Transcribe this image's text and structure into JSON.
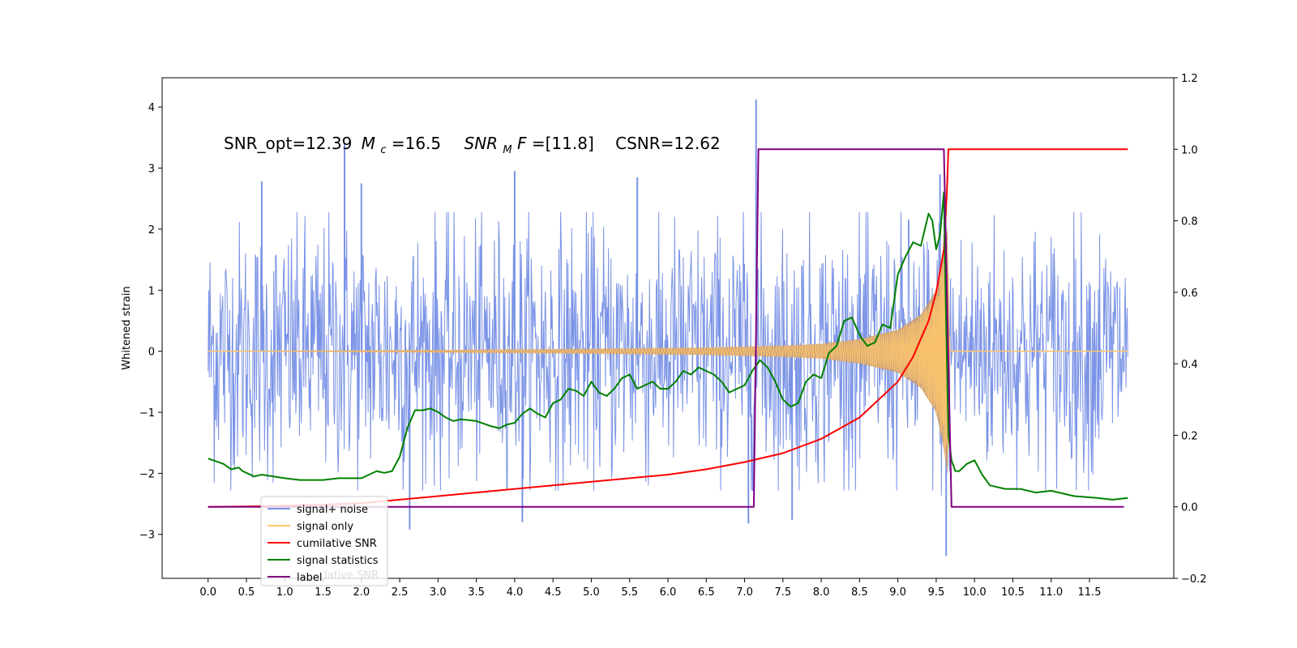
{
  "chart_data": {
    "type": "line",
    "annotation": {
      "snr_opt": "SNR_opt=12.39",
      "mc_symbol": "M",
      "mc_sub": "c",
      "mc_value": "=16.5",
      "snrmf_symbol": "SNR",
      "snrmf_sub": "M",
      "snrmf_tail": "F",
      "snrmf_value": "=[11.8]",
      "csnr": "CSNR=12.62"
    },
    "ylabel_left": "Whitened strain",
    "xlim": [
      -0.6,
      12.6
    ],
    "ylim_left": [
      -3.72,
      4.48
    ],
    "ylim_right": [
      -0.2,
      1.2
    ],
    "xticks": [
      "0.0",
      "0.5",
      "1.0",
      "1.5",
      "2.0",
      "2.5",
      "3.0",
      "3.5",
      "4.0",
      "4.5",
      "5.0",
      "5.5",
      "6.0",
      "6.5",
      "7.0",
      "7.5",
      "8.0",
      "8.5",
      "9.0",
      "9.5",
      "10.0",
      "10.5",
      "11.0",
      "11.5"
    ],
    "yticks_left": [
      "−3",
      "−2",
      "−1",
      "0",
      "1",
      "2",
      "3",
      "4"
    ],
    "yticks_right": [
      "−0.2",
      "0.0",
      "0.2",
      "0.4",
      "0.6",
      "0.8",
      "1.0",
      "1.2"
    ],
    "legend_position": "lower left",
    "legend": [
      {
        "label": "signal+ noise",
        "color": "#7a93e6"
      },
      {
        "label": "signal only",
        "color": "#ffc56a"
      },
      {
        "label": "cumilative SNR",
        "color": "#ff0000"
      },
      {
        "label": "signal statistics",
        "color": "#008000"
      },
      {
        "label": "label",
        "color": "#800080"
      }
    ],
    "legend_ghost_text": "lative SNR",
    "series": [
      {
        "name": "signal+ noise",
        "axis": "left",
        "color": "#7a93e6",
        "x_range": [
          0.0,
          12.0
        ],
        "band_envelope": {
          "x": [
            0,
            7.0,
            8.0,
            9.0,
            9.5,
            9.62,
            9.7,
            12.0
          ],
          "lo": [
            -1.9,
            -1.9,
            -1.9,
            -1.9,
            -2.0,
            -2.1,
            -1.9,
            -1.9
          ],
          "hi": [
            1.9,
            1.9,
            1.9,
            1.9,
            2.0,
            2.1,
            1.9,
            1.9
          ]
        },
        "notable_extremes": [
          {
            "x": 7.15,
            "y": 4.12
          },
          {
            "x": 1.78,
            "y": 3.4
          },
          {
            "x": 9.63,
            "y": -3.35
          },
          {
            "x": 2.63,
            "y": -2.92
          },
          {
            "x": 4.1,
            "y": -2.8
          },
          {
            "x": 7.05,
            "y": -2.82
          },
          {
            "x": 7.62,
            "y": -2.76
          },
          {
            "x": 0.7,
            "y": 2.78
          },
          {
            "x": 2.0,
            "y": 2.75
          },
          {
            "x": 4.0,
            "y": 2.95
          },
          {
            "x": 5.6,
            "y": 2.85
          },
          {
            "x": 9.55,
            "y": 2.9
          }
        ]
      },
      {
        "name": "signal only",
        "axis": "left",
        "color": "#ffc56a",
        "fill_color": "#c79a6e",
        "envelope": {
          "x": [
            0,
            3.0,
            5.0,
            6.5,
            7.5,
            8.0,
            8.5,
            9.0,
            9.3,
            9.5,
            9.6,
            9.65,
            9.68,
            12.0
          ],
          "amp": [
            0.0,
            0.02,
            0.04,
            0.06,
            0.09,
            0.12,
            0.2,
            0.35,
            0.6,
            1.0,
            1.6,
            2.05,
            0.0,
            0.0
          ]
        }
      },
      {
        "name": "cumilative SNR",
        "axis": "right",
        "color": "#ff0000",
        "x": [
          0,
          0.5,
          1.0,
          1.5,
          2.0,
          3.0,
          4.0,
          5.0,
          6.0,
          6.5,
          7.0,
          7.5,
          8.0,
          8.5,
          9.0,
          9.2,
          9.4,
          9.5,
          9.6,
          9.64,
          9.66,
          12.0
        ],
        "y": [
          0.0,
          0.001,
          0.003,
          0.006,
          0.01,
          0.03,
          0.05,
          0.07,
          0.09,
          0.105,
          0.125,
          0.15,
          0.19,
          0.25,
          0.35,
          0.42,
          0.52,
          0.6,
          0.72,
          0.88,
          1.0,
          1.0
        ]
      },
      {
        "name": "signal statistics",
        "axis": "right",
        "color": "#008000",
        "x": [
          0,
          0.2,
          0.3,
          0.4,
          0.45,
          0.6,
          0.7,
          1.0,
          1.2,
          1.5,
          1.7,
          2.0,
          2.1,
          2.2,
          2.3,
          2.4,
          2.5,
          2.6,
          2.7,
          2.8,
          2.9,
          3.0,
          3.1,
          3.2,
          3.3,
          3.5,
          3.7,
          3.8,
          3.9,
          4.0,
          4.1,
          4.2,
          4.3,
          4.4,
          4.5,
          4.6,
          4.7,
          4.8,
          4.9,
          5.0,
          5.1,
          5.2,
          5.3,
          5.4,
          5.5,
          5.6,
          5.7,
          5.8,
          5.9,
          6.0,
          6.1,
          6.2,
          6.3,
          6.4,
          6.5,
          6.6,
          6.7,
          6.8,
          6.9,
          7.0,
          7.1,
          7.2,
          7.3,
          7.4,
          7.5,
          7.6,
          7.7,
          7.8,
          7.9,
          8.0,
          8.1,
          8.2,
          8.3,
          8.4,
          8.5,
          8.6,
          8.7,
          8.8,
          8.9,
          9.0,
          9.1,
          9.2,
          9.3,
          9.4,
          9.45,
          9.5,
          9.55,
          9.6,
          9.62,
          9.66,
          9.7,
          9.75,
          9.8,
          9.9,
          10.0,
          10.1,
          10.2,
          10.4,
          10.6,
          10.8,
          11.0,
          11.3,
          11.6,
          11.8,
          12.0
        ],
        "y": [
          0.135,
          0.12,
          0.105,
          0.11,
          0.1,
          0.085,
          0.09,
          0.08,
          0.075,
          0.075,
          0.08,
          0.08,
          0.09,
          0.1,
          0.095,
          0.1,
          0.14,
          0.22,
          0.27,
          0.27,
          0.275,
          0.265,
          0.25,
          0.24,
          0.245,
          0.24,
          0.225,
          0.22,
          0.23,
          0.235,
          0.26,
          0.275,
          0.26,
          0.25,
          0.29,
          0.3,
          0.33,
          0.325,
          0.31,
          0.35,
          0.32,
          0.31,
          0.33,
          0.36,
          0.37,
          0.33,
          0.34,
          0.35,
          0.33,
          0.33,
          0.35,
          0.38,
          0.37,
          0.39,
          0.38,
          0.37,
          0.35,
          0.32,
          0.33,
          0.34,
          0.38,
          0.41,
          0.39,
          0.35,
          0.3,
          0.28,
          0.29,
          0.35,
          0.37,
          0.36,
          0.43,
          0.45,
          0.52,
          0.53,
          0.48,
          0.45,
          0.46,
          0.51,
          0.5,
          0.65,
          0.7,
          0.74,
          0.73,
          0.82,
          0.8,
          0.72,
          0.76,
          0.88,
          0.62,
          0.2,
          0.13,
          0.1,
          0.1,
          0.12,
          0.13,
          0.09,
          0.06,
          0.05,
          0.05,
          0.04,
          0.045,
          0.03,
          0.025,
          0.02,
          0.025
        ]
      },
      {
        "name": "label",
        "axis": "right",
        "color": "#800080",
        "x": [
          0,
          7.12,
          7.18,
          9.6,
          9.7,
          11.95
        ],
        "y": [
          0.0,
          0.0,
          1.0,
          1.0,
          0.0,
          0.0
        ]
      }
    ]
  }
}
